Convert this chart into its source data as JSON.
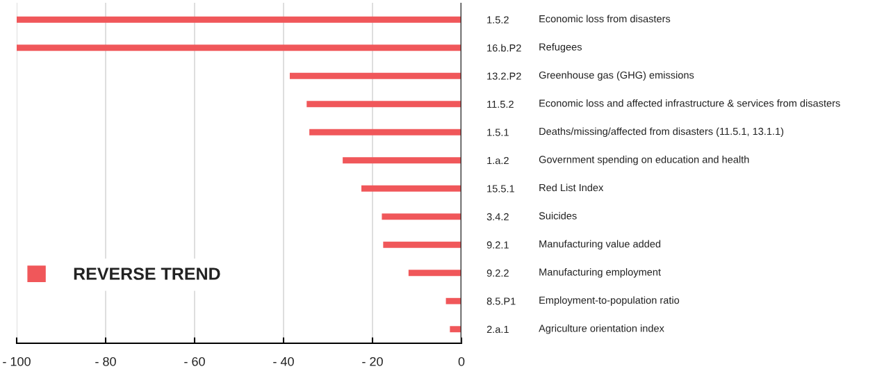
{
  "chart_data": {
    "type": "bar",
    "orientation": "horizontal",
    "categories": [
      "1.5.2",
      "16.b.P2",
      "13.2.P2",
      "11.5.2",
      "1.5.1",
      "1.a.2",
      "15.5.1",
      "3.4.2",
      "9.2.1",
      "9.2.2",
      "8.5.P1",
      "2.a.1"
    ],
    "y2_categories": [
      "Economic loss from disasters",
      "Refugees",
      "Greenhouse gas (GHG) emissions",
      "Economic loss and affected infrastructure & services from disasters",
      "Deaths/missing/affected from disasters (11.5.1, 13.1.1)",
      "Government spending on education and health",
      "Red List Index",
      "Suicides",
      "Manufacturing value added",
      "Manufacturing employment",
      "Employment-to-population ratio",
      "Agriculture orientation index"
    ],
    "series": [
      {
        "name": "REVERSE TREND",
        "color": "#f0575a",
        "values": [
          -100,
          -100,
          -38.6,
          -34.8,
          -34.2,
          -26.7,
          -22.5,
          -17.9,
          -17.6,
          -11.9,
          -3.5,
          -2.6
        ]
      }
    ],
    "xlim": [
      -100,
      0
    ],
    "xticks": [
      {
        "value": -100,
        "label": "- 100"
      },
      {
        "value": -80,
        "label": "- 80"
      },
      {
        "value": -60,
        "label": "- 60"
      },
      {
        "value": -40,
        "label": "- 40"
      },
      {
        "value": -20,
        "label": "- 20"
      },
      0
    ],
    "grid": "x",
    "legend": "bottom left"
  }
}
